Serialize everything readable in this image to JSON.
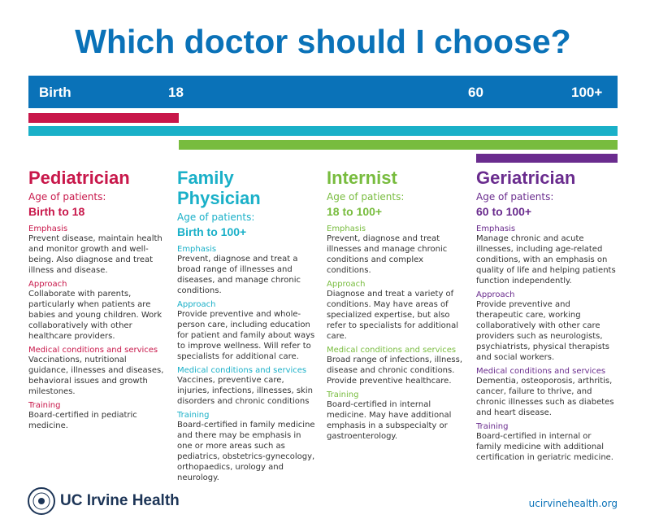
{
  "title": "Which doctor should I choose?",
  "age_bar": {
    "labels": [
      "Birth",
      "18",
      "60",
      "100+"
    ]
  },
  "columns": [
    {
      "name": "Pediatrician",
      "color": "#c8174a",
      "age_label": "Age of patients:",
      "age_range": "Birth to 18",
      "sections": [
        {
          "heading": "Emphasis",
          "text": "Prevent disease, maintain health and monitor growth and well-being. Also diagnose and treat illness and disease."
        },
        {
          "heading": "Approach",
          "text": "Collaborate with parents, particularly when patients are babies and young children. Work collaboratively with other healthcare providers."
        },
        {
          "heading": "Medical conditions and services",
          "text": "Vaccinations, nutritional guidance, illnesses and diseases, behavioral issues and growth milestones."
        },
        {
          "heading": "Training",
          "text": "Board-certified in pediatric medicine."
        }
      ]
    },
    {
      "name": "Family Physician",
      "color": "#1ab0c8",
      "age_label": "Age of patients:",
      "age_range": "Birth to 100+",
      "sections": [
        {
          "heading": "Emphasis",
          "text": "Prevent, diagnose and treat a broad range of illnesses and diseases, and manage chronic conditions."
        },
        {
          "heading": "Approach",
          "text": "Provide preventive and whole-person care, including education for patient and family about ways to improve wellness. Will refer to specialists for additional care."
        },
        {
          "heading": "Medical conditions and services",
          "text": "Vaccines, preventive care, injuries, infections, illnesses, skin disorders and chronic conditions"
        },
        {
          "heading": "Training",
          "text": "Board-certified in family medicine and there may be emphasis in one or more areas such as pediatrics, obstetrics-gynecology, orthopaedics, urology and neurology."
        }
      ]
    },
    {
      "name": "Internist",
      "color": "#78bc3e",
      "age_label": "Age of patients:",
      "age_range": "18 to 100+",
      "sections": [
        {
          "heading": "Emphasis",
          "text": "Prevent, diagnose and treat illnesses and manage chronic conditions and complex conditions."
        },
        {
          "heading": "Approach",
          "text": "Diagnose and treat a variety of conditions. May have areas of specialized expertise, but also refer to specialists for additional care."
        },
        {
          "heading": "Medical conditions and services",
          "text": "Broad range of infections, illness, disease and chronic conditions. Provide preventive healthcare."
        },
        {
          "heading": "Training",
          "text": "Board-certified in internal medicine. May have additional emphasis in a subspecialty or gastroenterology."
        }
      ]
    },
    {
      "name": "Geriatrician",
      "color": "#6a2c8e",
      "age_label": "Age of patients:",
      "age_range": "60 to 100+",
      "sections": [
        {
          "heading": "Emphasis",
          "text": "Manage chronic and acute illnesses, including age-related conditions, with an emphasis on quality of life and helping patients function independently."
        },
        {
          "heading": "Approach",
          "text": "Provide preventive and therapeutic care, working collaboratively with other care providers such as neurologists, psychiatrists, physical therapists and social workers."
        },
        {
          "heading": "Medical conditions and services",
          "text": "Dementia, osteoporosis, arthritis, cancer, failure to thrive, and chronic illnesses such as diabetes and heart disease."
        },
        {
          "heading": "Training",
          "text": "Board-certified in internal or family medicine with additional certification in geriatric medicine."
        }
      ]
    }
  ],
  "footer": {
    "logo": "UC Irvine Health",
    "url": "ucirvinehealth.org"
  }
}
